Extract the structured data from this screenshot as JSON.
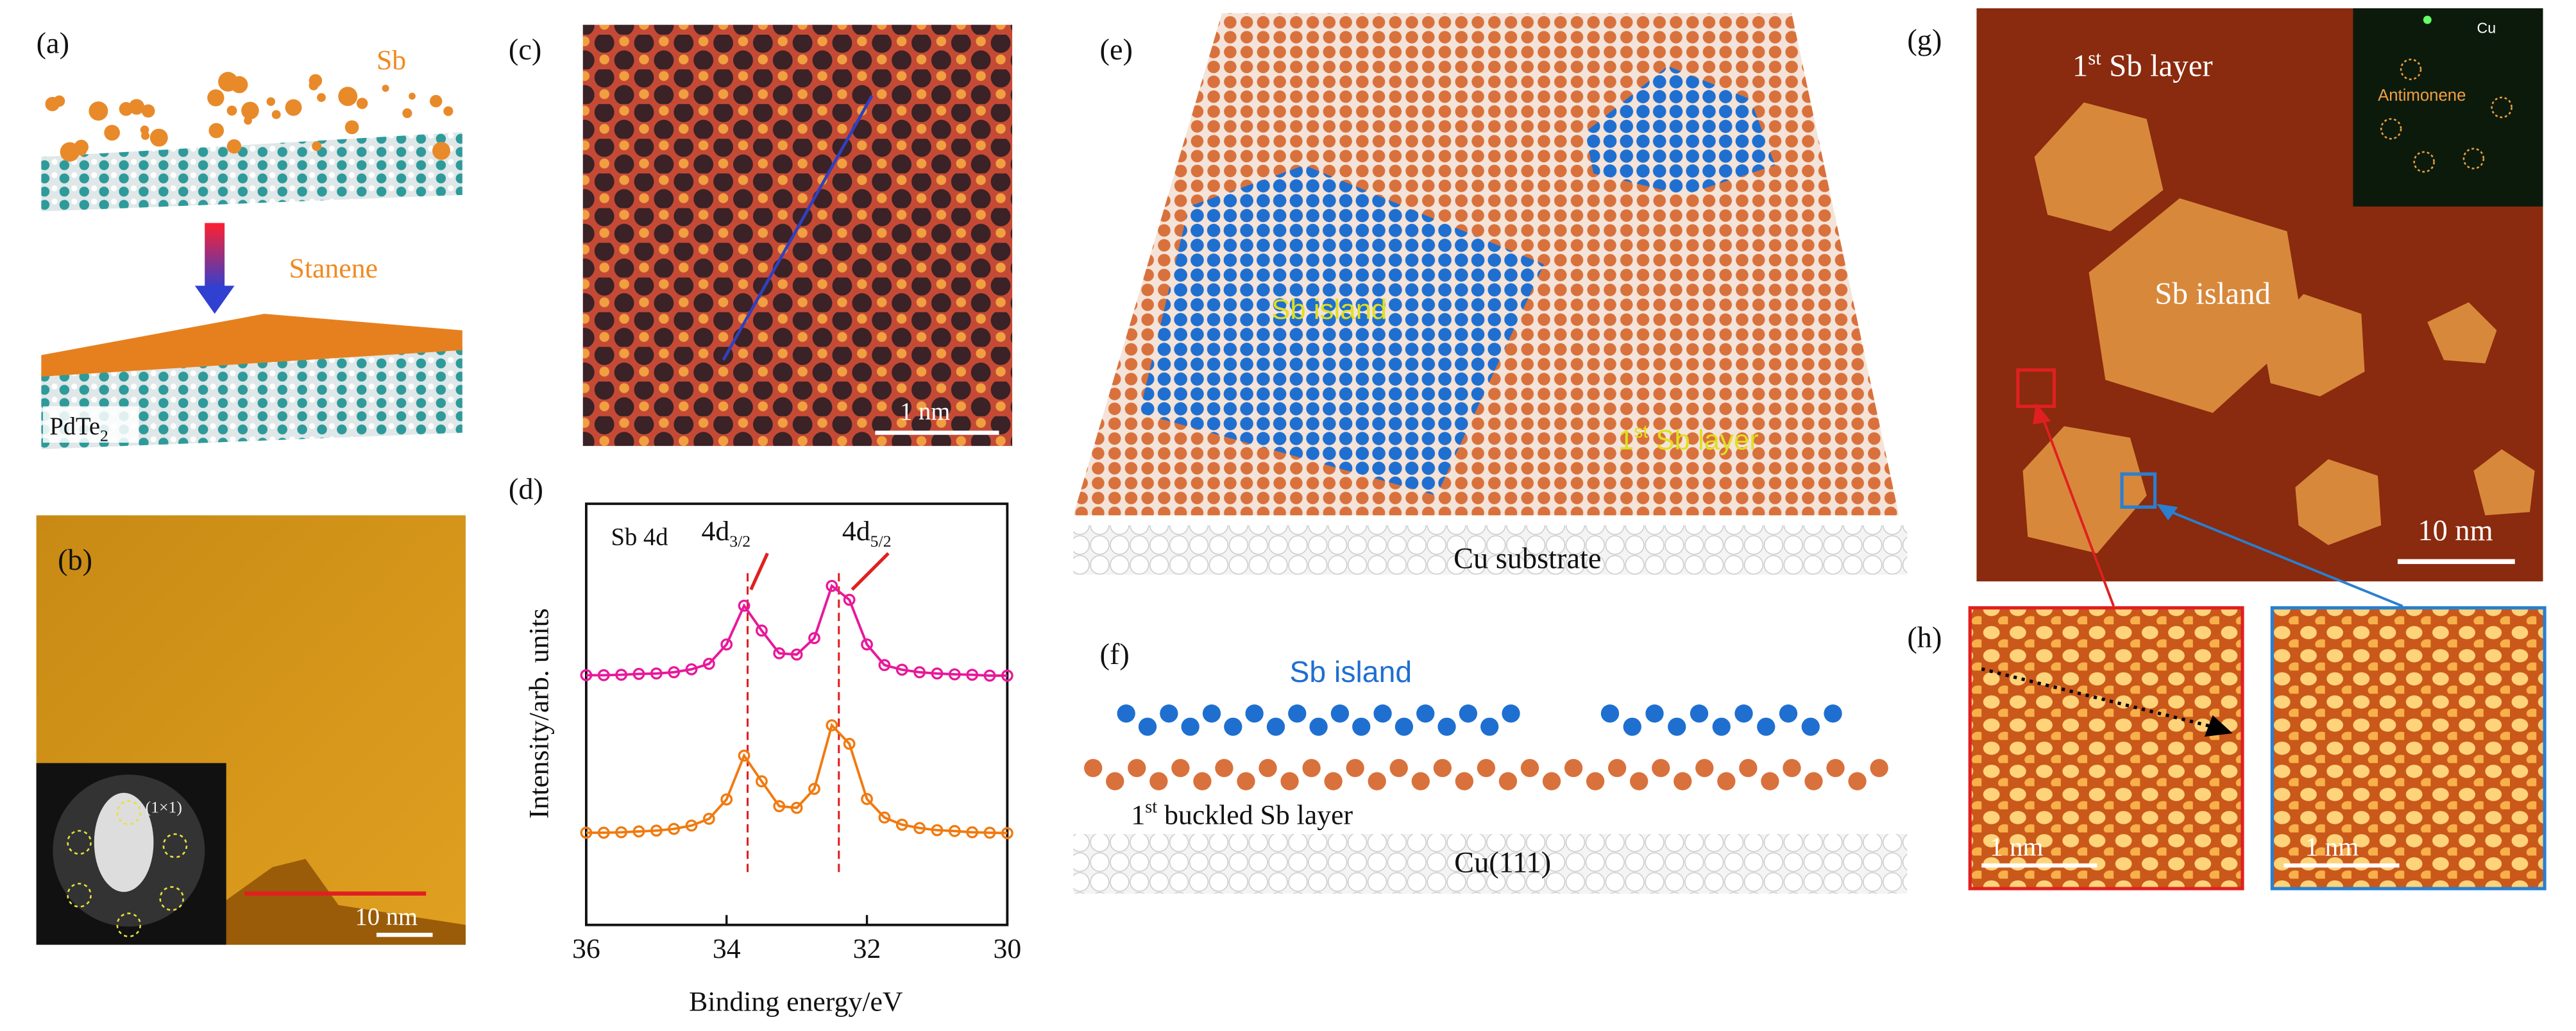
{
  "panels": {
    "a": {
      "label": "(a)",
      "sb": "Sb",
      "stanene": "Stanene",
      "substrate": {
        "base": "PdTe",
        "sub": "2"
      }
    },
    "b": {
      "label": "(b)",
      "inset": "(1×1)",
      "scale": "10 nm"
    },
    "c": {
      "label": "(c)",
      "scale": "1 nm"
    },
    "d": {
      "label": "(d)"
    },
    "e": {
      "label": "(e)",
      "island": "Sb island",
      "layer": {
        "base": "1",
        "sup": "st",
        "rest": " Sb layer"
      },
      "substrate": "Cu substrate"
    },
    "f": {
      "label": "(f)",
      "island": "Sb island",
      "layer": {
        "base": "1",
        "sup": "st",
        "rest": " buckled Sb layer"
      },
      "substrate": "Cu(111)"
    },
    "g": {
      "label": "(g)",
      "layer": {
        "base": "1",
        "sup": "st",
        "rest": " Sb layer"
      },
      "island": "Sb island",
      "scale": "10 nm",
      "inset_cu": "Cu",
      "inset_sb": "Antimonene"
    },
    "h": {
      "label": "(h)",
      "scale_left": "1 nm",
      "scale_right": "1 nm"
    }
  },
  "chart_data": {
    "type": "line",
    "annotation": "Sb 4d",
    "xlabel": "Binding energy/eV",
    "ylabel": "Intensity/arb. units",
    "xlim": [
      36,
      30
    ],
    "xticks": [
      36,
      34,
      32,
      30
    ],
    "ylim": [
      0,
      10
    ],
    "peaks": [
      {
        "label": {
          "base": "4d",
          "sub": "3/2"
        },
        "x": 33.7
      },
      {
        "label": {
          "base": "4d",
          "sub": "5/2"
        },
        "x": 32.4
      }
    ],
    "x": [
      36,
      35.75,
      35.5,
      35.25,
      35,
      34.75,
      34.5,
      34.25,
      34,
      33.75,
      33.5,
      33.25,
      33,
      32.75,
      32.5,
      32.25,
      32,
      31.75,
      31.5,
      31.25,
      31,
      30.75,
      30.5,
      30.25,
      30
    ],
    "series": [
      {
        "color": "#e8189a",
        "values": [
          5.93,
          5.93,
          5.94,
          5.96,
          5.97,
          6.0,
          6.07,
          6.2,
          6.66,
          7.58,
          6.99,
          6.45,
          6.42,
          6.81,
          8.05,
          7.72,
          6.66,
          6.17,
          6.06,
          6.0,
          5.97,
          5.95,
          5.94,
          5.92,
          5.92
        ]
      },
      {
        "color": "#f07a10",
        "values": [
          2.19,
          2.19,
          2.2,
          2.22,
          2.24,
          2.28,
          2.36,
          2.52,
          2.98,
          4.02,
          3.41,
          2.82,
          2.78,
          3.23,
          4.74,
          4.3,
          2.99,
          2.55,
          2.38,
          2.3,
          2.25,
          2.23,
          2.2,
          2.19,
          2.18
        ]
      }
    ]
  }
}
